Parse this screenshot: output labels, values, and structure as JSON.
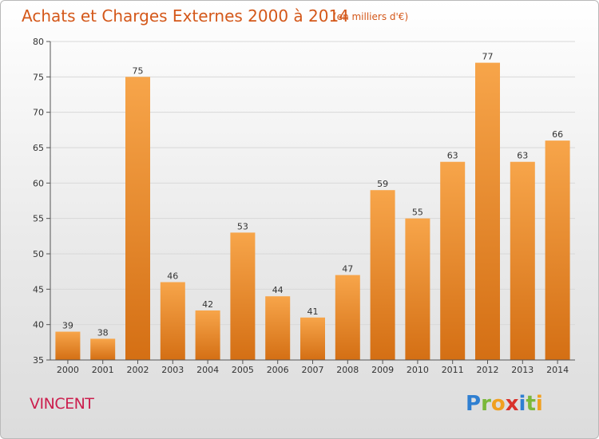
{
  "header": {
    "title": "Achats et Charges Externes 2000 à 2014",
    "subtitle": "(en milliers d'€)"
  },
  "commune": "VINCENT",
  "brand": {
    "letters": [
      {
        "ch": "P",
        "color": "#2f7fd1"
      },
      {
        "ch": "r",
        "color": "#7bb83a"
      },
      {
        "ch": "o",
        "color": "#f0a020"
      },
      {
        "ch": "x",
        "color": "#d9322b"
      },
      {
        "ch": "i",
        "color": "#2f7fd1"
      },
      {
        "ch": "t",
        "color": "#7bb83a"
      },
      {
        "ch": "i",
        "color": "#f0a020"
      }
    ]
  },
  "chart_data": {
    "type": "bar",
    "categories": [
      "2000",
      "2001",
      "2002",
      "2003",
      "2004",
      "2005",
      "2006",
      "2007",
      "2008",
      "2009",
      "2010",
      "2011",
      "2012",
      "2013",
      "2014"
    ],
    "values": [
      39,
      38,
      75,
      46,
      42,
      53,
      44,
      41,
      47,
      59,
      55,
      63,
      77,
      63,
      66
    ],
    "ylim": [
      35,
      80
    ],
    "yticks": [
      35,
      40,
      45,
      50,
      55,
      60,
      65,
      70,
      75,
      80
    ],
    "grid": true,
    "colors": {
      "bar_top": "#f7a54a",
      "bar_bottom": "#d46f14",
      "grid": "#d8d8d8"
    }
  }
}
